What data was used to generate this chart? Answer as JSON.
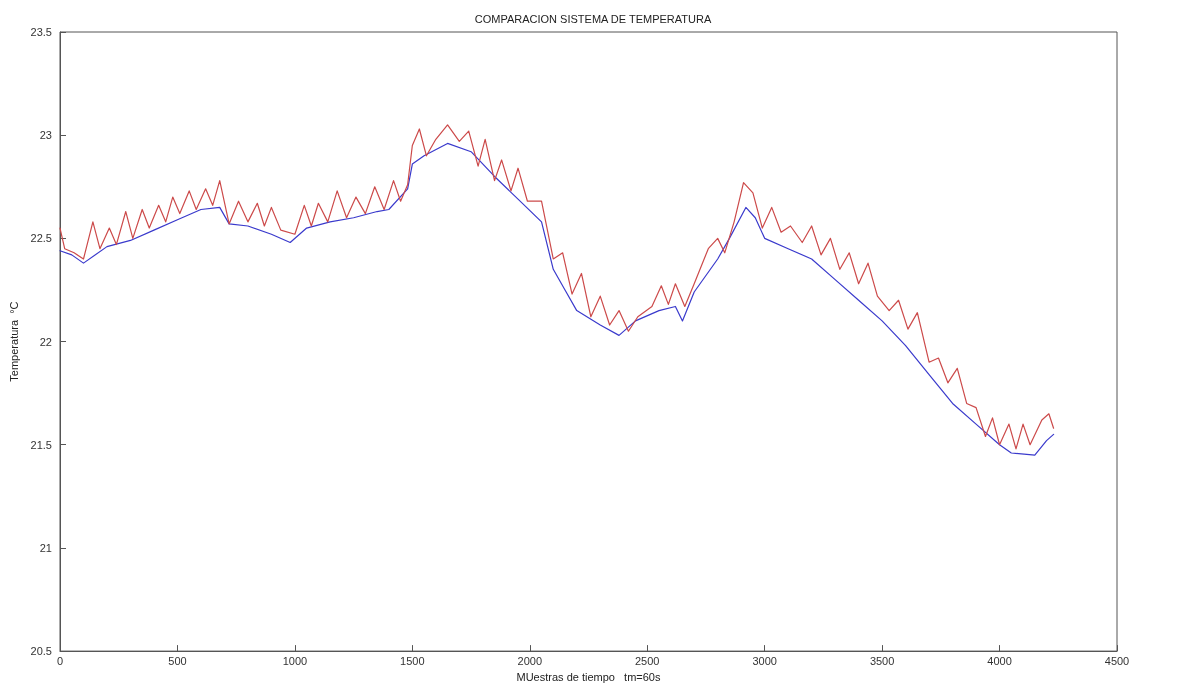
{
  "chart_data": {
    "type": "line",
    "title": "COMPARACION SISTEMA DE TEMPERATURA",
    "xlabel": "MUestras de tiempo   tm=60s",
    "ylabel": "Temperatura  °C",
    "xlim": [
      0,
      4500
    ],
    "xticks": [
      0,
      500,
      1000,
      1500,
      2000,
      2500,
      3000,
      3500,
      4000,
      4500
    ],
    "ylim": [
      20.5,
      23.5
    ],
    "yticks": [
      20.5,
      21,
      21.5,
      22,
      22.5,
      23,
      23.5
    ],
    "grid": false,
    "marker": "none",
    "line_style": "solid",
    "series": [
      {
        "color": "#3a3acc",
        "x": [
          0,
          50,
          100,
          200,
          300,
          400,
          500,
          600,
          680,
          720,
          800,
          900,
          980,
          1050,
          1150,
          1250,
          1350,
          1400,
          1480,
          1500,
          1550,
          1650,
          1750,
          1850,
          1950,
          2050,
          2100,
          2150,
          2200,
          2300,
          2380,
          2450,
          2550,
          2620,
          2650,
          2700,
          2800,
          2850,
          2920,
          2960,
          3000,
          3100,
          3200,
          3300,
          3400,
          3500,
          3600,
          3700,
          3800,
          3900,
          4000,
          4050,
          4150,
          4200,
          4230
        ],
        "values": [
          22.44,
          22.42,
          22.38,
          22.46,
          22.49,
          22.54,
          22.59,
          22.64,
          22.65,
          22.57,
          22.56,
          22.52,
          22.48,
          22.55,
          22.58,
          22.6,
          22.63,
          22.64,
          22.74,
          22.86,
          22.9,
          22.96,
          22.92,
          22.8,
          22.69,
          22.58,
          22.35,
          22.25,
          22.15,
          22.08,
          22.03,
          22.1,
          22.15,
          22.17,
          22.1,
          22.24,
          22.4,
          22.5,
          22.65,
          22.6,
          22.5,
          22.45,
          22.4,
          22.3,
          22.2,
          22.1,
          21.98,
          21.84,
          21.7,
          21.6,
          21.5,
          21.46,
          21.45,
          21.52,
          21.55
        ]
      },
      {
        "color": "#cc4a4a",
        "x": [
          0,
          20,
          60,
          100,
          140,
          170,
          210,
          240,
          280,
          310,
          350,
          380,
          420,
          450,
          480,
          510,
          550,
          580,
          620,
          650,
          680,
          720,
          760,
          800,
          840,
          870,
          900,
          940,
          1000,
          1040,
          1070,
          1100,
          1140,
          1180,
          1220,
          1260,
          1300,
          1340,
          1380,
          1420,
          1450,
          1480,
          1500,
          1530,
          1560,
          1600,
          1650,
          1700,
          1740,
          1780,
          1810,
          1850,
          1880,
          1920,
          1950,
          1990,
          2050,
          2100,
          2140,
          2180,
          2220,
          2260,
          2300,
          2340,
          2380,
          2420,
          2460,
          2520,
          2560,
          2590,
          2620,
          2660,
          2700,
          2760,
          2800,
          2830,
          2870,
          2910,
          2950,
          2990,
          3030,
          3070,
          3110,
          3160,
          3200,
          3240,
          3280,
          3320,
          3360,
          3400,
          3440,
          3480,
          3530,
          3570,
          3610,
          3650,
          3700,
          3740,
          3780,
          3820,
          3860,
          3900,
          3940,
          3970,
          4000,
          4040,
          4070,
          4100,
          4130,
          4180,
          4210,
          4230
        ],
        "values": [
          22.55,
          22.45,
          22.43,
          22.4,
          22.58,
          22.45,
          22.55,
          22.47,
          22.63,
          22.5,
          22.64,
          22.55,
          22.66,
          22.58,
          22.7,
          22.62,
          22.73,
          22.64,
          22.74,
          22.66,
          22.78,
          22.57,
          22.68,
          22.58,
          22.67,
          22.56,
          22.65,
          22.54,
          22.52,
          22.66,
          22.56,
          22.67,
          22.58,
          22.73,
          22.6,
          22.7,
          22.62,
          22.75,
          22.64,
          22.78,
          22.68,
          22.76,
          22.95,
          23.03,
          22.9,
          22.98,
          23.05,
          22.97,
          23.02,
          22.85,
          22.98,
          22.78,
          22.88,
          22.73,
          22.84,
          22.68,
          22.68,
          22.4,
          22.43,
          22.23,
          22.33,
          22.12,
          22.22,
          22.08,
          22.15,
          22.05,
          22.12,
          22.17,
          22.27,
          22.18,
          22.28,
          22.17,
          22.28,
          22.45,
          22.5,
          22.43,
          22.58,
          22.77,
          22.72,
          22.55,
          22.65,
          22.53,
          22.56,
          22.48,
          22.56,
          22.42,
          22.5,
          22.35,
          22.43,
          22.28,
          22.38,
          22.22,
          22.15,
          22.2,
          22.06,
          22.14,
          21.9,
          21.92,
          21.8,
          21.87,
          21.7,
          21.68,
          21.54,
          21.63,
          21.5,
          21.6,
          21.48,
          21.6,
          21.5,
          21.62,
          21.65,
          21.58
        ]
      }
    ]
  }
}
